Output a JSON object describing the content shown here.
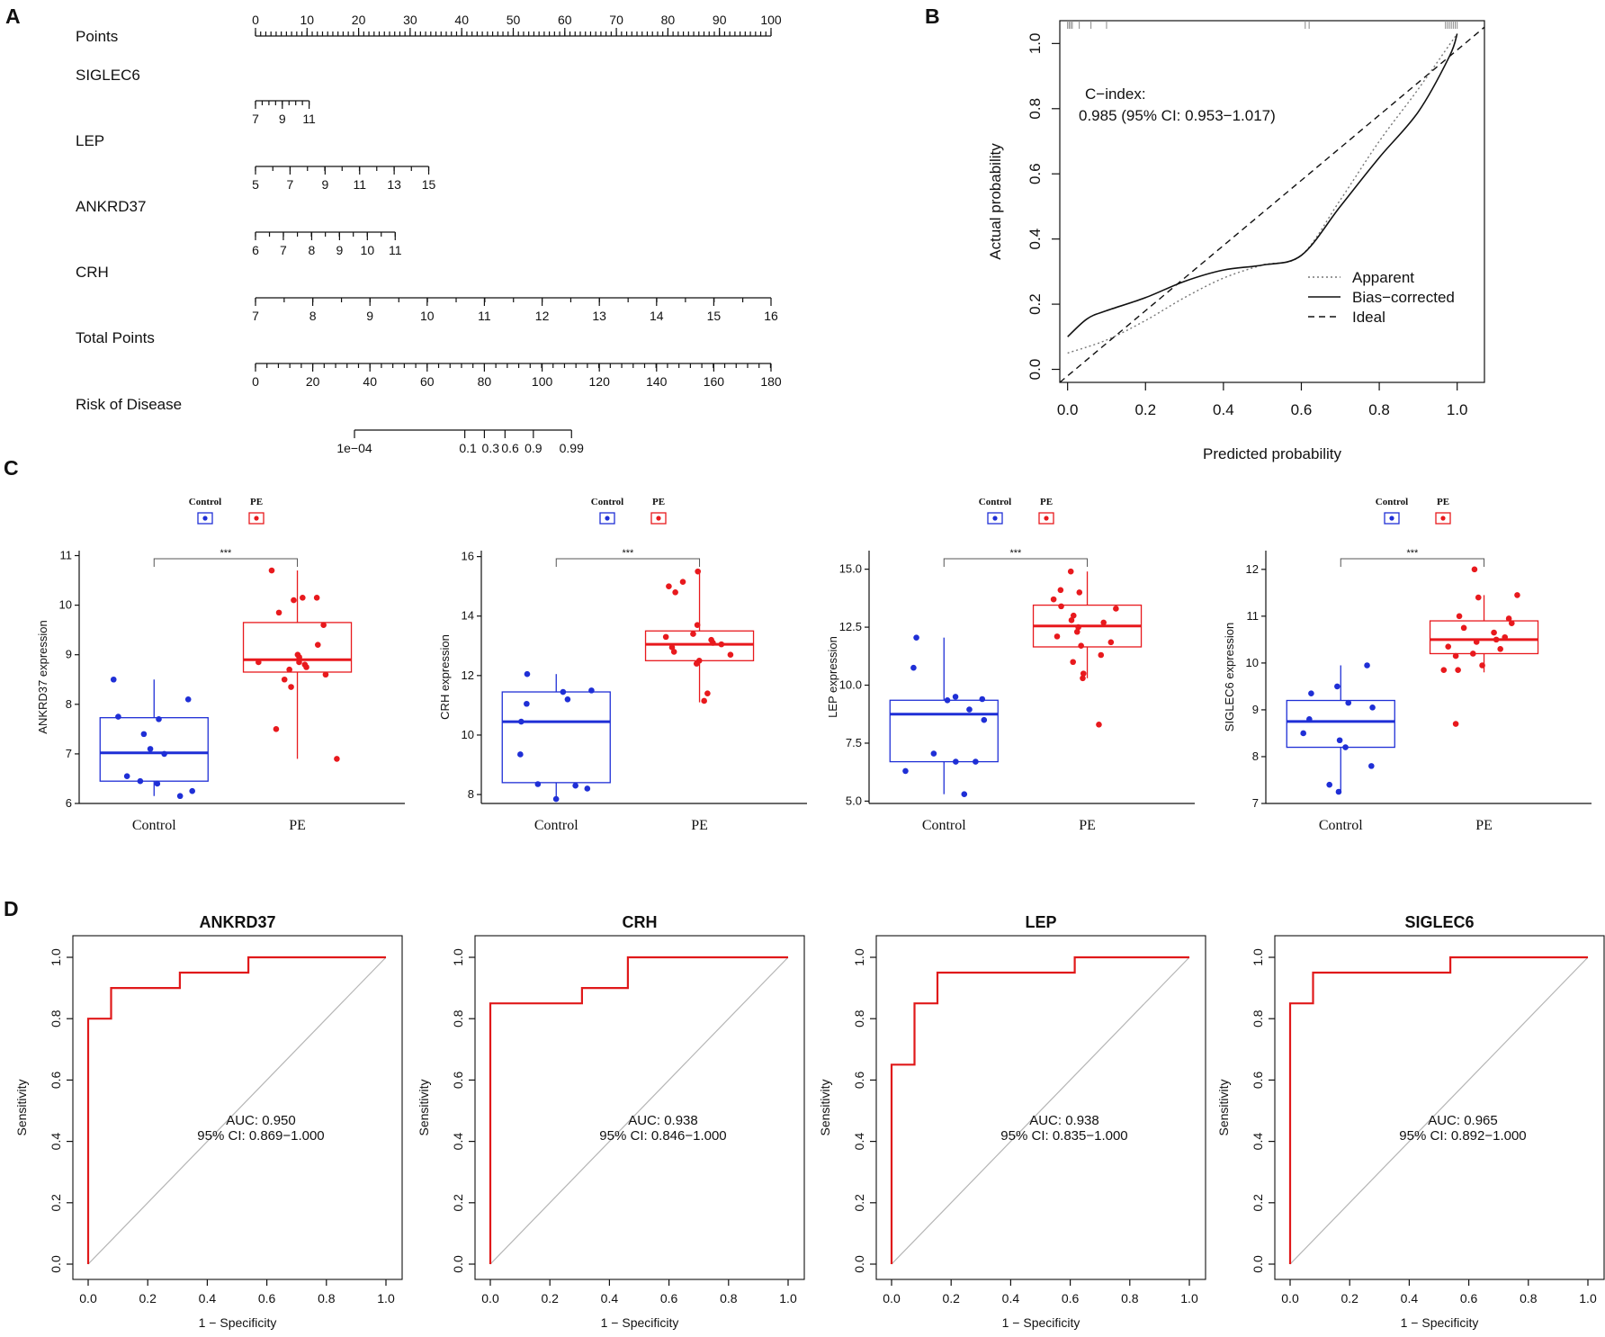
{
  "panels": {
    "a": "A",
    "b": "B",
    "c": "C",
    "d": "D"
  },
  "chart_data": [
    {
      "id": "A",
      "type": "nomogram",
      "rows": [
        {
          "label": "Points",
          "ticks": [
            [
              0,
              "0"
            ],
            [
              10,
              "10"
            ],
            [
              20,
              "20"
            ],
            [
              30,
              "30"
            ],
            [
              40,
              "40"
            ],
            [
              50,
              "50"
            ],
            [
              60,
              "60"
            ],
            [
              70,
              "70"
            ],
            [
              80,
              "80"
            ],
            [
              90,
              "90"
            ],
            [
              100,
              "100"
            ]
          ],
          "minor": 1,
          "labels_above": true
        },
        {
          "label": "SIGLEC6",
          "ticks": [
            [
              0,
              "7"
            ],
            [
              5.2,
              "9"
            ],
            [
              10.4,
              "11"
            ]
          ],
          "minor": 1.3
        },
        {
          "label": "LEP",
          "ticks": [
            [
              0,
              "5"
            ],
            [
              6.7,
              "7"
            ],
            [
              13.5,
              "9"
            ],
            [
              20.2,
              "11"
            ],
            [
              26.9,
              "13"
            ],
            [
              33.6,
              "15"
            ]
          ],
          "minor": 3.36
        },
        {
          "label": "ANKRD37",
          "ticks": [
            [
              0,
              "6"
            ],
            [
              5.4,
              "7"
            ],
            [
              10.9,
              "8"
            ],
            [
              16.3,
              "9"
            ],
            [
              21.7,
              "10"
            ],
            [
              27.1,
              "11"
            ]
          ],
          "minor": 2.71
        },
        {
          "label": "CRH",
          "ticks": [
            [
              0,
              "7"
            ],
            [
              11.1,
              "8"
            ],
            [
              22.2,
              "9"
            ],
            [
              33.3,
              "10"
            ],
            [
              44.4,
              "11"
            ],
            [
              55.6,
              "12"
            ],
            [
              66.7,
              "13"
            ],
            [
              77.8,
              "14"
            ],
            [
              88.9,
              "15"
            ],
            [
              100,
              "16"
            ]
          ],
          "minor": 5.56
        },
        {
          "label": "Total Points",
          "ticks": [
            [
              0,
              "0"
            ],
            [
              11.1,
              "20"
            ],
            [
              22.2,
              "40"
            ],
            [
              33.3,
              "60"
            ],
            [
              44.4,
              "80"
            ],
            [
              55.6,
              "100"
            ],
            [
              66.7,
              "120"
            ],
            [
              77.8,
              "140"
            ],
            [
              88.9,
              "160"
            ],
            [
              100,
              "180"
            ]
          ],
          "minor": 2.22
        },
        {
          "label": "Risk of Disease",
          "ticks": [
            [
              19.2,
              "1e−04"
            ],
            [
              40.6,
              "0.1"
            ],
            [
              44.4,
              "0.3"
            ],
            [
              48.4,
              "0.6"
            ],
            [
              53.9,
              "0.9"
            ],
            [
              61.3,
              "0.99"
            ]
          ],
          "minor": 0,
          "risk": true,
          "label_x": [
            19.2,
            41.2,
            45.6,
            49.4,
            53.9,
            61.3
          ]
        }
      ]
    },
    {
      "id": "B",
      "type": "line",
      "title": "",
      "xlabel": "Predicted probability",
      "ylabel": "Actual probability",
      "xlim": [
        -0.02,
        1.07
      ],
      "ylim": [
        -0.04,
        1.07
      ],
      "ticks": [
        [
          0,
          "0.0"
        ],
        [
          0.2,
          "0.2"
        ],
        [
          0.4,
          "0.4"
        ],
        [
          0.6,
          "0.6"
        ],
        [
          0.8,
          "0.8"
        ],
        [
          1.0,
          "1.0"
        ]
      ],
      "annotation": [
        "C−index:",
        "0.985 (95% CI: 0.953−1.017)"
      ],
      "series": [
        {
          "name": "Apparent",
          "style": "dotted",
          "points": [
            [
              0,
              0.05
            ],
            [
              0.1,
              0.09
            ],
            [
              0.2,
              0.15
            ],
            [
              0.3,
              0.22
            ],
            [
              0.4,
              0.28
            ],
            [
              0.5,
              0.32
            ],
            [
              0.6,
              0.35
            ],
            [
              0.7,
              0.52
            ],
            [
              0.8,
              0.7
            ],
            [
              0.9,
              0.86
            ],
            [
              1.0,
              1.03
            ]
          ]
        },
        {
          "name": "Bias−corrected",
          "style": "solid",
          "points": [
            [
              0,
              0.1
            ],
            [
              0.05,
              0.155
            ],
            [
              0.1,
              0.18
            ],
            [
              0.2,
              0.22
            ],
            [
              0.3,
              0.27
            ],
            [
              0.4,
              0.305
            ],
            [
              0.5,
              0.32
            ],
            [
              0.6,
              0.35
            ],
            [
              0.7,
              0.5
            ],
            [
              0.8,
              0.65
            ],
            [
              0.9,
              0.79
            ],
            [
              0.98,
              0.96
            ],
            [
              1.0,
              1.03
            ]
          ]
        },
        {
          "name": "Ideal",
          "style": "dashed",
          "points": [
            [
              -0.02,
              -0.04
            ],
            [
              1.07,
              1.05
            ]
          ]
        }
      ],
      "rug_left": [
        0,
        0.004,
        0.008,
        0.012,
        0.03,
        0.06,
        0.1
      ],
      "rug_right": [
        0.61,
        0.62,
        0.97,
        0.975,
        0.98,
        0.985,
        0.99,
        0.995,
        1.0
      ]
    },
    {
      "id": "C1",
      "type": "box",
      "ylabel": "ANKRD37 expression",
      "categories": [
        "Control",
        "PE"
      ],
      "legend": [
        "Control",
        "PE"
      ],
      "signif": "***",
      "ylim": [
        6,
        11.1
      ],
      "ticks": [
        6,
        7,
        8,
        9,
        10,
        11
      ],
      "boxes": [
        {
          "q1": 6.45,
          "median": 7.02,
          "q3": 7.73,
          "whisker_low": 6.15,
          "whisker_high": 8.5
        },
        {
          "q1": 8.65,
          "median": 8.9,
          "q3": 9.65,
          "whisker_low": 6.9,
          "whisker_high": 10.7
        }
      ],
      "points": [
        [
          8.5,
          8.1,
          7.75,
          7.7,
          7.4,
          7.1,
          7.0,
          6.55,
          6.45,
          6.4,
          6.25,
          6.15
        ],
        [
          10.7,
          10.15,
          10.15,
          10.1,
          9.85,
          9.6,
          9.2,
          9.0,
          8.95,
          8.85,
          8.85,
          8.8,
          8.75,
          8.7,
          8.6,
          8.5,
          8.35,
          7.5,
          6.9
        ]
      ]
    },
    {
      "id": "C2",
      "type": "box",
      "ylabel": "CRH expression",
      "categories": [
        "Control",
        "PE"
      ],
      "legend": [
        "Control",
        "PE"
      ],
      "signif": "***",
      "ylim": [
        7.7,
        16.2
      ],
      "ticks": [
        8,
        10,
        12,
        14,
        16
      ],
      "boxes": [
        {
          "q1": 8.4,
          "median": 10.45,
          "q3": 11.45,
          "whisker_low": 7.85,
          "whisker_high": 12.05
        },
        {
          "q1": 12.5,
          "median": 13.05,
          "q3": 13.5,
          "whisker_low": 11.1,
          "whisker_high": 15.5
        }
      ],
      "points": [
        [
          12.05,
          11.5,
          11.45,
          11.2,
          11.05,
          10.45,
          9.35,
          8.35,
          8.3,
          8.2,
          7.85
        ],
        [
          15.5,
          15.15,
          15.0,
          14.8,
          13.7,
          13.4,
          13.3,
          13.2,
          13.1,
          13.05,
          12.95,
          12.8,
          12.7,
          12.5,
          12.4,
          11.4,
          11.15
        ]
      ]
    },
    {
      "id": "C3",
      "type": "box",
      "ylabel": "LEP expression",
      "categories": [
        "Control",
        "PE"
      ],
      "legend": [
        "Control",
        "PE"
      ],
      "signif": "***",
      "ylim": [
        4.9,
        15.8
      ],
      "ticks": [
        [
          5.0,
          "5.0"
        ],
        [
          7.5,
          "7.5"
        ],
        [
          10.0,
          "10.0"
        ],
        [
          12.5,
          "12.5"
        ],
        [
          15.0,
          "15.0"
        ]
      ],
      "boxes": [
        {
          "q1": 6.7,
          "median": 8.75,
          "q3": 9.35,
          "whisker_low": 5.3,
          "whisker_high": 12.05
        },
        {
          "q1": 11.65,
          "median": 12.55,
          "q3": 13.45,
          "whisker_low": 10.3,
          "whisker_high": 14.9
        }
      ],
      "points": [
        [
          12.05,
          10.75,
          9.5,
          9.4,
          9.35,
          8.95,
          8.5,
          7.05,
          6.7,
          6.7,
          6.3,
          5.3
        ],
        [
          14.9,
          14.1,
          14.0,
          13.7,
          13.4,
          13.3,
          13.0,
          12.8,
          12.7,
          12.5,
          12.3,
          12.1,
          11.85,
          11.7,
          11.3,
          11.0,
          10.5,
          10.3,
          8.3
        ]
      ]
    },
    {
      "id": "C4",
      "type": "box",
      "ylabel": "SIGLEC6 expression",
      "categories": [
        "Control",
        "PE"
      ],
      "legend": [
        "Control",
        "PE"
      ],
      "signif": "***",
      "ylim": [
        7,
        12.4
      ],
      "ticks": [
        7,
        8,
        9,
        10,
        11,
        12
      ],
      "boxes": [
        {
          "q1": 8.2,
          "median": 8.75,
          "q3": 9.2,
          "whisker_low": 7.25,
          "whisker_high": 9.95
        },
        {
          "q1": 10.2,
          "median": 10.5,
          "q3": 10.9,
          "whisker_low": 9.8,
          "whisker_high": 11.45
        }
      ],
      "points": [
        [
          9.95,
          9.5,
          9.35,
          9.15,
          9.05,
          8.8,
          8.5,
          8.35,
          8.2,
          7.8,
          7.4,
          7.25
        ],
        [
          12.0,
          11.45,
          11.4,
          11.0,
          10.95,
          10.85,
          10.75,
          10.65,
          10.55,
          10.5,
          10.45,
          10.35,
          10.3,
          10.2,
          10.15,
          9.95,
          9.85,
          9.85,
          8.7
        ]
      ]
    },
    {
      "id": "D1",
      "type": "line",
      "title": "ANKRD37",
      "xlabel": "1 − Specificity",
      "ylabel": "Sensitivity",
      "auc": "AUC: 0.950",
      "ci": "95% CI: 0.869−1.000",
      "roc": [
        [
          0,
          0
        ],
        [
          0,
          0.8
        ],
        [
          0.077,
          0.8
        ],
        [
          0.077,
          0.9
        ],
        [
          0.308,
          0.9
        ],
        [
          0.308,
          0.95
        ],
        [
          0.538,
          0.95
        ],
        [
          0.538,
          1.0
        ],
        [
          1.0,
          1.0
        ]
      ]
    },
    {
      "id": "D2",
      "type": "line",
      "title": "CRH",
      "xlabel": "1 − Specificity",
      "ylabel": "Sensitivity",
      "auc": "AUC: 0.938",
      "ci": "95% CI: 0.846−1.000",
      "roc": [
        [
          0,
          0
        ],
        [
          0,
          0.85
        ],
        [
          0.308,
          0.85
        ],
        [
          0.308,
          0.9
        ],
        [
          0.462,
          0.9
        ],
        [
          0.462,
          1.0
        ],
        [
          1.0,
          1.0
        ]
      ]
    },
    {
      "id": "D3",
      "type": "line",
      "title": "LEP",
      "xlabel": "1 − Specificity",
      "ylabel": "Sensitivity",
      "auc": "AUC: 0.938",
      "ci": "95% CI: 0.835−1.000",
      "roc": [
        [
          0,
          0
        ],
        [
          0,
          0.65
        ],
        [
          0.077,
          0.65
        ],
        [
          0.077,
          0.85
        ],
        [
          0.154,
          0.85
        ],
        [
          0.154,
          0.95
        ],
        [
          0.615,
          0.95
        ],
        [
          0.615,
          1.0
        ],
        [
          1.0,
          1.0
        ]
      ]
    },
    {
      "id": "D4",
      "type": "line",
      "title": "SIGLEC6",
      "xlabel": "1 − Specificity",
      "ylabel": "Sensitivity",
      "auc": "AUC: 0.965",
      "ci": "95% CI: 0.892−1.000",
      "roc": [
        [
          0,
          0
        ],
        [
          0,
          0.85
        ],
        [
          0.077,
          0.85
        ],
        [
          0.077,
          0.95
        ],
        [
          0.538,
          0.95
        ],
        [
          0.538,
          1.0
        ],
        [
          1.0,
          1.0
        ]
      ]
    }
  ],
  "colors": {
    "control": "#1f2fd6",
    "pe": "#e8191d",
    "roc": "#e0191a",
    "diag": "#b5b5b5",
    "ink": "#111111"
  }
}
